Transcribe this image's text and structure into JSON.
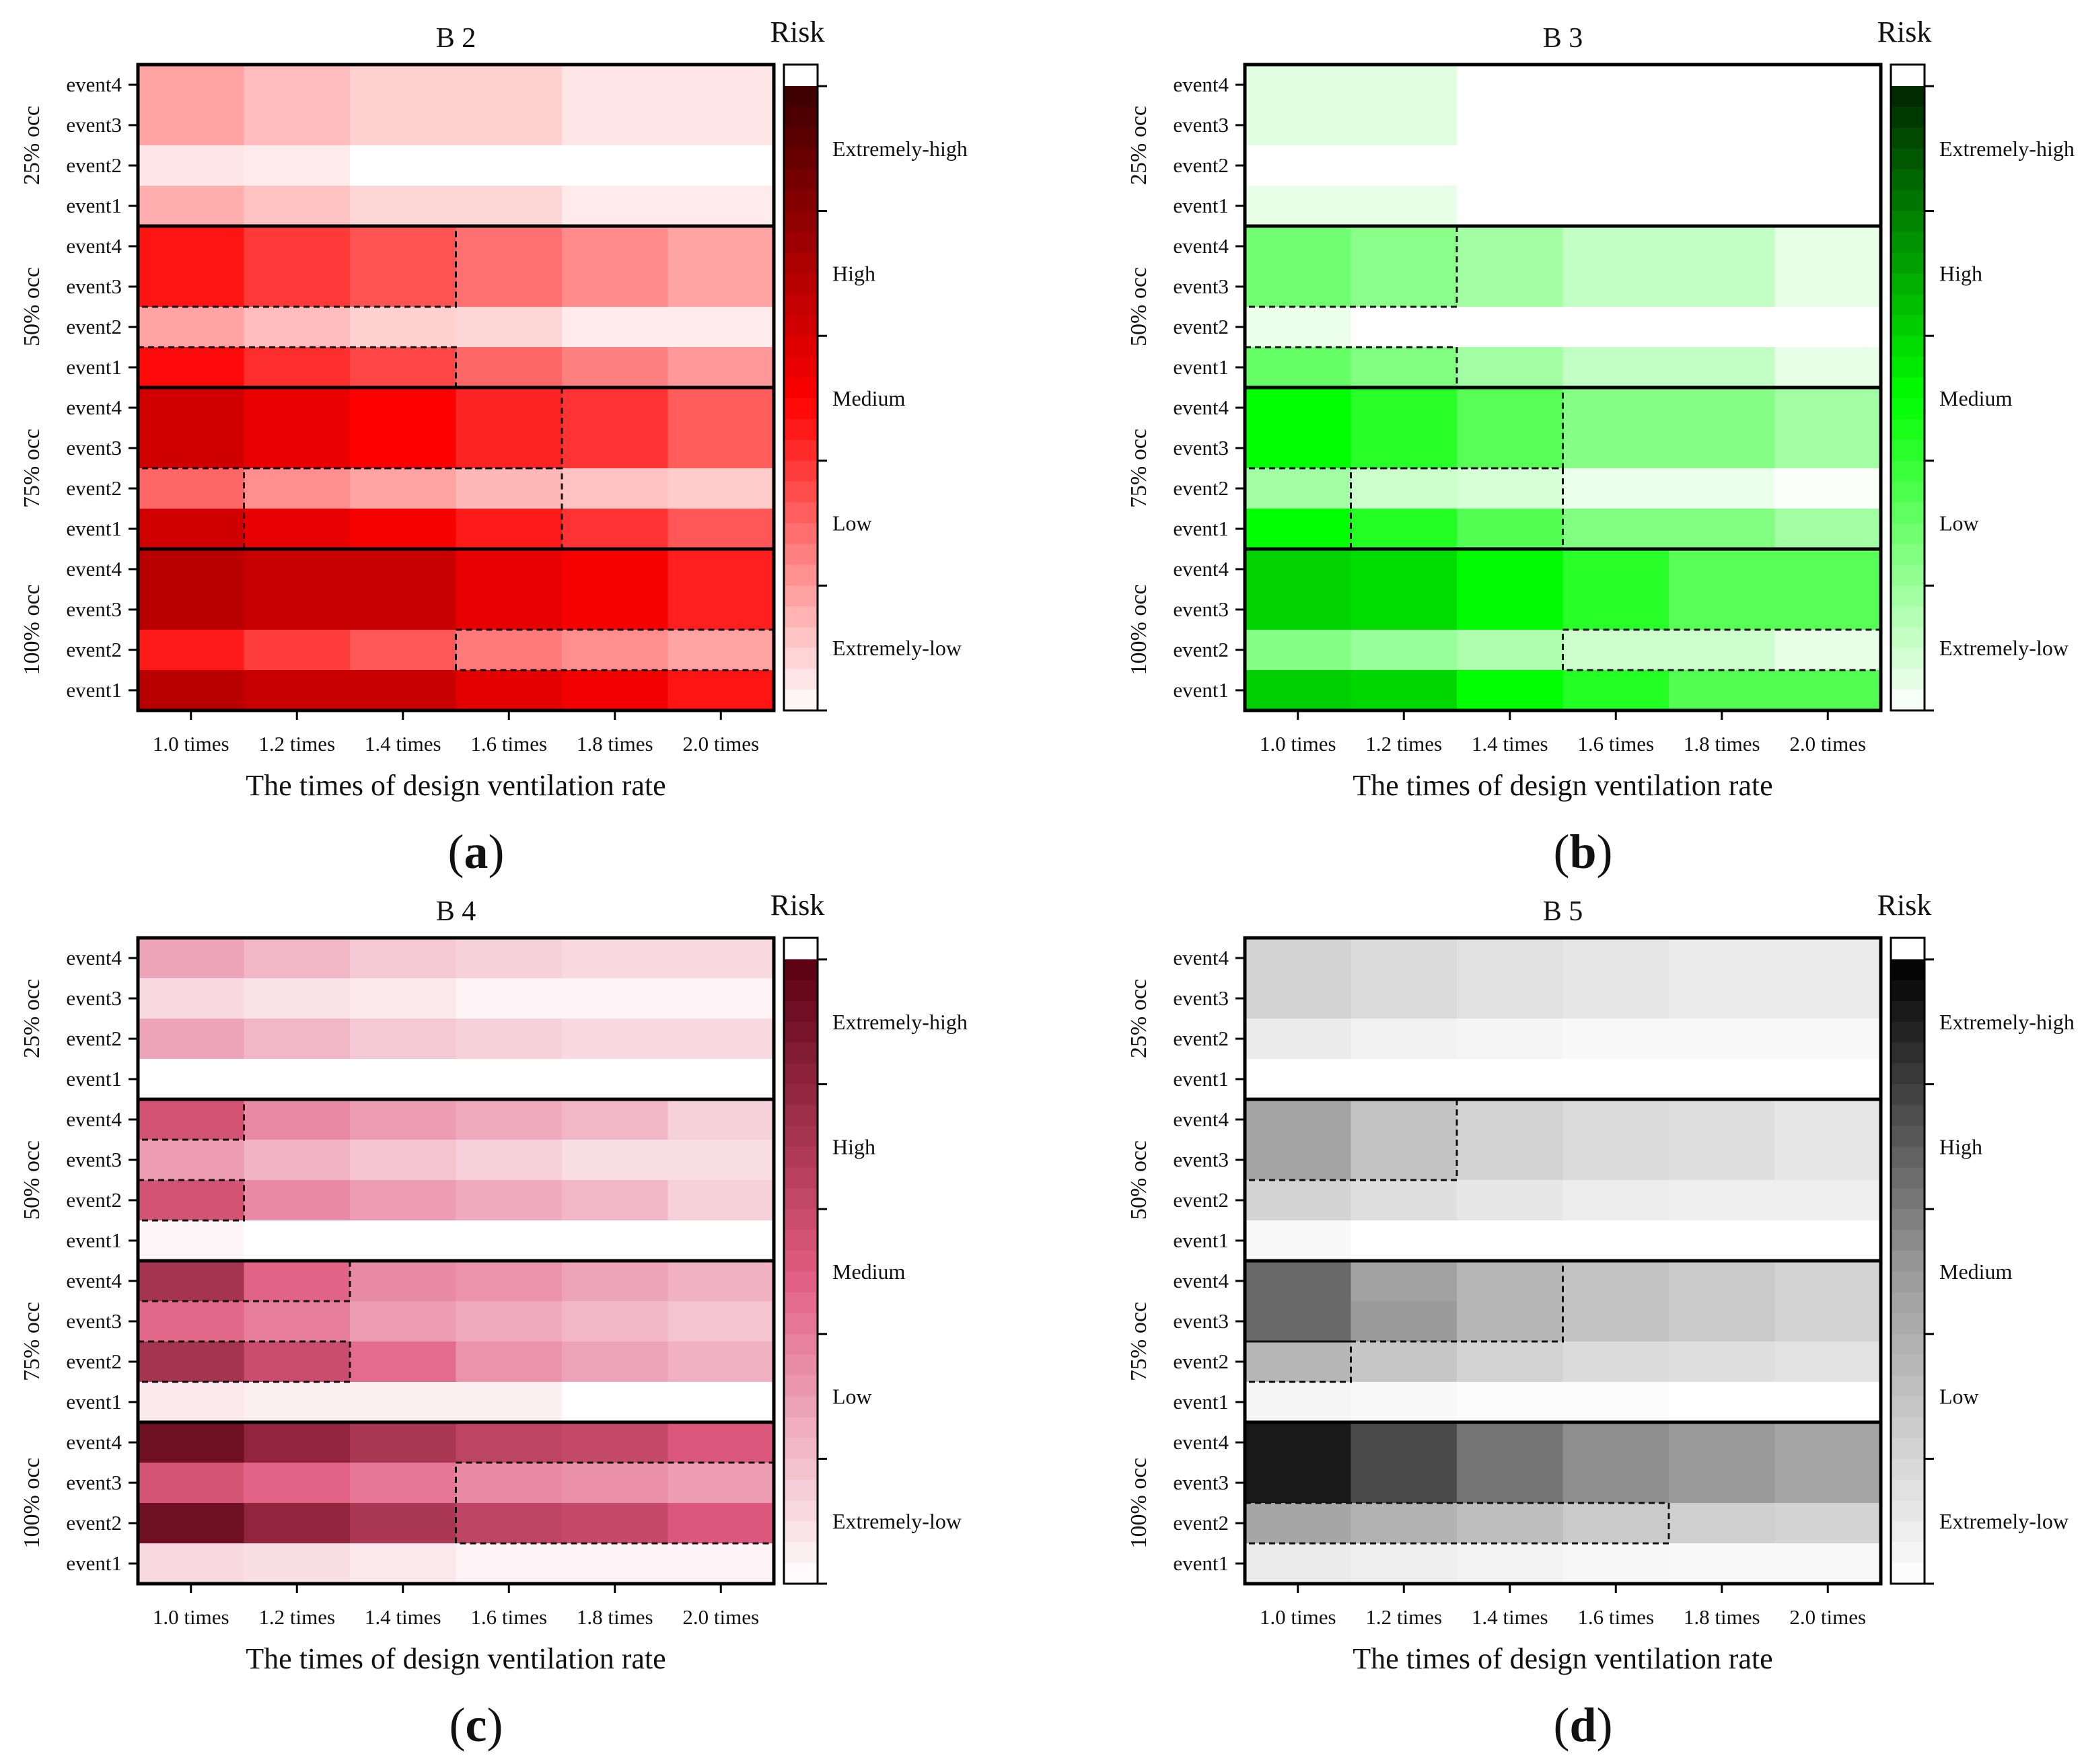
{
  "chart_data": [
    {
      "type": "heatmap",
      "panel": "(a)",
      "panel_letter": "a",
      "title": "B 2",
      "xlabel": "The times of design ventilation rate",
      "categories": [
        "1.0 times",
        "1.2 times",
        "1.4 times",
        "1.6 times",
        "1.8 times",
        "2.0 times"
      ],
      "groups": [
        "25% occ",
        "50% occ",
        "75% occ",
        "100% occ"
      ],
      "rows": [
        "event4",
        "event3",
        "event2",
        "event1"
      ],
      "colorbar": {
        "title": "Risk",
        "scale_min": 0,
        "scale_max": 1,
        "low_color": "#ffffff",
        "mid_color": "#ff0000",
        "high_color": "#3a0000",
        "levels": [
          "Extremely-low",
          "Low",
          "Medium",
          "High",
          "Extremely-high"
        ]
      },
      "values": [
        [
          0.18,
          0.13,
          0.09,
          0.09,
          0.05,
          0.05
        ],
        [
          0.18,
          0.13,
          0.09,
          0.09,
          0.05,
          0.05
        ],
        [
          0.05,
          0.04,
          0.0,
          0.0,
          0.0,
          0.0
        ],
        [
          0.16,
          0.12,
          0.08,
          0.08,
          0.04,
          0.04
        ],
        [
          0.46,
          0.39,
          0.34,
          0.28,
          0.23,
          0.18
        ],
        [
          0.46,
          0.39,
          0.34,
          0.28,
          0.23,
          0.18
        ],
        [
          0.18,
          0.13,
          0.09,
          0.08,
          0.04,
          0.04
        ],
        [
          0.48,
          0.41,
          0.36,
          0.3,
          0.25,
          0.2
        ],
        [
          0.62,
          0.55,
          0.5,
          0.43,
          0.4,
          0.32
        ],
        [
          0.62,
          0.55,
          0.5,
          0.43,
          0.4,
          0.32
        ],
        [
          0.3,
          0.22,
          0.18,
          0.14,
          0.12,
          0.1
        ],
        [
          0.62,
          0.56,
          0.52,
          0.45,
          0.4,
          0.33
        ],
        [
          0.68,
          0.64,
          0.64,
          0.56,
          0.52,
          0.44
        ],
        [
          0.68,
          0.64,
          0.64,
          0.56,
          0.52,
          0.44
        ],
        [
          0.45,
          0.38,
          0.33,
          0.26,
          0.22,
          0.18
        ],
        [
          0.68,
          0.64,
          0.64,
          0.57,
          0.53,
          0.46
        ]
      ],
      "dashed_boxes": [
        {
          "row_start": 0,
          "row_end": 1,
          "col_start": 0,
          "col_end": 2
        },
        {
          "row_start": 3,
          "row_end": 3,
          "col_start": 0,
          "col_end": 2
        },
        {
          "row_start": 0,
          "row_end": 1,
          "col_start": 0,
          "col_end": 3
        },
        {
          "row_start": 2,
          "row_end": 3,
          "col_start": 1,
          "col_end": 3
        },
        {
          "row_start": 2,
          "row_end": 2,
          "col_start": 3,
          "col_end": 5
        }
      ],
      "dashed_groups": [
        1,
        1,
        2,
        2,
        3
      ]
    },
    {
      "type": "heatmap",
      "panel": "(b)",
      "panel_letter": "b",
      "title": "B 3",
      "xlabel": "The times of design ventilation rate",
      "categories": [
        "1.0 times",
        "1.2 times",
        "1.4 times",
        "1.6 times",
        "1.8 times",
        "2.0 times"
      ],
      "groups": [
        "25% occ",
        "50% occ",
        "75% occ",
        "100% occ"
      ],
      "rows": [
        "event4",
        "event3",
        "event2",
        "event1"
      ],
      "colorbar": {
        "title": "Risk",
        "scale_min": 0,
        "scale_max": 1,
        "low_color": "#ffffff",
        "mid_color": "#00ff00",
        "high_color": "#002400",
        "levels": [
          "Extremely-low",
          "Low",
          "Medium",
          "High",
          "Extremely-high"
        ]
      },
      "values": [
        [
          0.06,
          0.06,
          0.0,
          0.0,
          0.0,
          0.0
        ],
        [
          0.06,
          0.06,
          0.0,
          0.0,
          0.0,
          0.0
        ],
        [
          0.0,
          0.0,
          0.0,
          0.0,
          0.0,
          0.0
        ],
        [
          0.05,
          0.05,
          0.0,
          0.0,
          0.0,
          0.0
        ],
        [
          0.28,
          0.23,
          0.18,
          0.12,
          0.12,
          0.05
        ],
        [
          0.28,
          0.23,
          0.18,
          0.12,
          0.12,
          0.05
        ],
        [
          0.04,
          0.0,
          0.0,
          0.0,
          0.0,
          0.0
        ],
        [
          0.3,
          0.25,
          0.18,
          0.12,
          0.12,
          0.05
        ],
        [
          0.5,
          0.42,
          0.33,
          0.24,
          0.24,
          0.18
        ],
        [
          0.5,
          0.42,
          0.33,
          0.24,
          0.24,
          0.18
        ],
        [
          0.18,
          0.1,
          0.08,
          0.04,
          0.04,
          0.01
        ],
        [
          0.5,
          0.43,
          0.34,
          0.25,
          0.25,
          0.18
        ],
        [
          0.6,
          0.58,
          0.51,
          0.42,
          0.33,
          0.33
        ],
        [
          0.6,
          0.58,
          0.51,
          0.42,
          0.33,
          0.33
        ],
        [
          0.24,
          0.2,
          0.16,
          0.1,
          0.1,
          0.05
        ],
        [
          0.61,
          0.59,
          0.5,
          0.43,
          0.34,
          0.34
        ]
      ],
      "dashed_boxes": [
        {
          "row_start": 0,
          "row_end": 1,
          "col_start": 0,
          "col_end": 1
        },
        {
          "row_start": 3,
          "row_end": 3,
          "col_start": 0,
          "col_end": 1
        },
        {
          "row_start": 0,
          "row_end": 1,
          "col_start": 0,
          "col_end": 2
        },
        {
          "row_start": 2,
          "row_end": 3,
          "col_start": 1,
          "col_end": 2
        },
        {
          "row_start": 2,
          "row_end": 2,
          "col_start": 3,
          "col_end": 5
        }
      ],
      "dashed_groups": [
        1,
        1,
        2,
        2,
        3
      ]
    },
    {
      "type": "heatmap",
      "panel": "(c)",
      "panel_letter": "c",
      "title": "B 4",
      "xlabel": "The times of design ventilation rate",
      "categories": [
        "1.0 times",
        "1.2 times",
        "1.4 times",
        "1.6 times",
        "1.8 times",
        "2.0 times"
      ],
      "groups": [
        "25% occ",
        "50% occ",
        "75% occ",
        "100% occ"
      ],
      "rows": [
        "event4",
        "event3",
        "event2",
        "event1"
      ],
      "colorbar": {
        "title": "Risk",
        "scale_min": 0,
        "scale_max": 1,
        "low_color": "#ffffff",
        "mid_color": "#e05c80",
        "high_color": "#5a0010",
        "levels": [
          "Extremely-low",
          "Low",
          "Medium",
          "High",
          "Extremely-high"
        ]
      },
      "values": [
        [
          0.28,
          0.22,
          0.17,
          0.14,
          0.12,
          0.12
        ],
        [
          0.12,
          0.09,
          0.07,
          0.04,
          0.04,
          0.04
        ],
        [
          0.28,
          0.22,
          0.17,
          0.14,
          0.12,
          0.12
        ],
        [
          0.0,
          0.0,
          0.0,
          0.0,
          0.0,
          0.0
        ],
        [
          0.55,
          0.36,
          0.3,
          0.26,
          0.22,
          0.14
        ],
        [
          0.3,
          0.23,
          0.18,
          0.14,
          0.1,
          0.1
        ],
        [
          0.55,
          0.36,
          0.3,
          0.26,
          0.22,
          0.14
        ],
        [
          0.03,
          0.0,
          0.0,
          0.0,
          0.0,
          0.0
        ],
        [
          0.72,
          0.48,
          0.36,
          0.33,
          0.28,
          0.24
        ],
        [
          0.46,
          0.4,
          0.3,
          0.26,
          0.22,
          0.18
        ],
        [
          0.72,
          0.58,
          0.45,
          0.33,
          0.28,
          0.24
        ],
        [
          0.07,
          0.05,
          0.05,
          0.05,
          0.0,
          0.0
        ],
        [
          0.92,
          0.8,
          0.7,
          0.63,
          0.6,
          0.52
        ],
        [
          0.54,
          0.48,
          0.42,
          0.36,
          0.34,
          0.3
        ],
        [
          0.92,
          0.8,
          0.7,
          0.63,
          0.6,
          0.52
        ],
        [
          0.12,
          0.1,
          0.07,
          0.04,
          0.04,
          0.04
        ]
      ],
      "dashed_boxes": [
        {
          "row_start": 0,
          "row_end": 0,
          "col_start": 0,
          "col_end": 0
        },
        {
          "row_start": 2,
          "row_end": 2,
          "col_start": 0,
          "col_end": 0
        },
        {
          "row_start": 0,
          "row_end": 0,
          "col_start": 0,
          "col_end": 1
        },
        {
          "row_start": 2,
          "row_end": 2,
          "col_start": 0,
          "col_end": 1
        },
        {
          "row_start": 1,
          "row_end": 2,
          "col_start": 3,
          "col_end": 5
        }
      ],
      "dashed_groups": [
        1,
        1,
        2,
        2,
        3
      ]
    },
    {
      "type": "heatmap",
      "panel": "(d)",
      "panel_letter": "d",
      "title": "B 5",
      "xlabel": "The times of design ventilation rate",
      "categories": [
        "1.0 times",
        "1.2 times",
        "1.4 times",
        "1.6 times",
        "1.8 times",
        "2.0 times"
      ],
      "groups": [
        "25% occ",
        "50% occ",
        "75% occ",
        "100% occ"
      ],
      "rows": [
        "event4",
        "event3",
        "event2",
        "event1"
      ],
      "colorbar": {
        "title": "Risk",
        "scale_min": 0,
        "scale_max": 1,
        "low_color": "#ffffff",
        "mid_color": "#9a9a9a",
        "high_color": "#000000",
        "levels": [
          "Extremely-low",
          "Low",
          "Medium",
          "High",
          "Extremely-high"
        ]
      },
      "values": [
        [
          0.22,
          0.18,
          0.15,
          0.12,
          0.1,
          0.1
        ],
        [
          0.22,
          0.18,
          0.15,
          0.12,
          0.1,
          0.1
        ],
        [
          0.1,
          0.07,
          0.05,
          0.03,
          0.03,
          0.03
        ],
        [
          0.0,
          0.0,
          0.0,
          0.0,
          0.0,
          0.0
        ],
        [
          0.45,
          0.3,
          0.22,
          0.18,
          0.16,
          0.12
        ],
        [
          0.45,
          0.3,
          0.22,
          0.18,
          0.16,
          0.12
        ],
        [
          0.22,
          0.16,
          0.12,
          0.09,
          0.08,
          0.08
        ],
        [
          0.03,
          0.0,
          0.0,
          0.0,
          0.0,
          0.0
        ],
        [
          0.66,
          0.46,
          0.36,
          0.3,
          0.26,
          0.22
        ],
        [
          0.66,
          0.5,
          0.36,
          0.3,
          0.26,
          0.22
        ],
        [
          0.36,
          0.28,
          0.22,
          0.18,
          0.16,
          0.14
        ],
        [
          0.05,
          0.03,
          0.02,
          0.02,
          0.0,
          0.0
        ],
        [
          0.92,
          0.76,
          0.62,
          0.54,
          0.5,
          0.44
        ],
        [
          0.92,
          0.76,
          0.62,
          0.54,
          0.5,
          0.44
        ],
        [
          0.44,
          0.38,
          0.32,
          0.26,
          0.24,
          0.22
        ],
        [
          0.1,
          0.08,
          0.06,
          0.04,
          0.03,
          0.03
        ]
      ],
      "dashed_boxes": [
        {
          "row_start": 0,
          "row_end": 1,
          "col_start": 0,
          "col_end": 1
        },
        {
          "row_start": 0,
          "row_end": 1,
          "col_start": 0,
          "col_end": 2
        },
        {
          "row_start": 2,
          "row_end": 2,
          "col_start": 0,
          "col_end": 0
        },
        {
          "row_start": 2,
          "row_end": 2,
          "col_start": 0,
          "col_end": 3
        }
      ],
      "dashed_groups": [
        1,
        2,
        2,
        3
      ]
    }
  ]
}
